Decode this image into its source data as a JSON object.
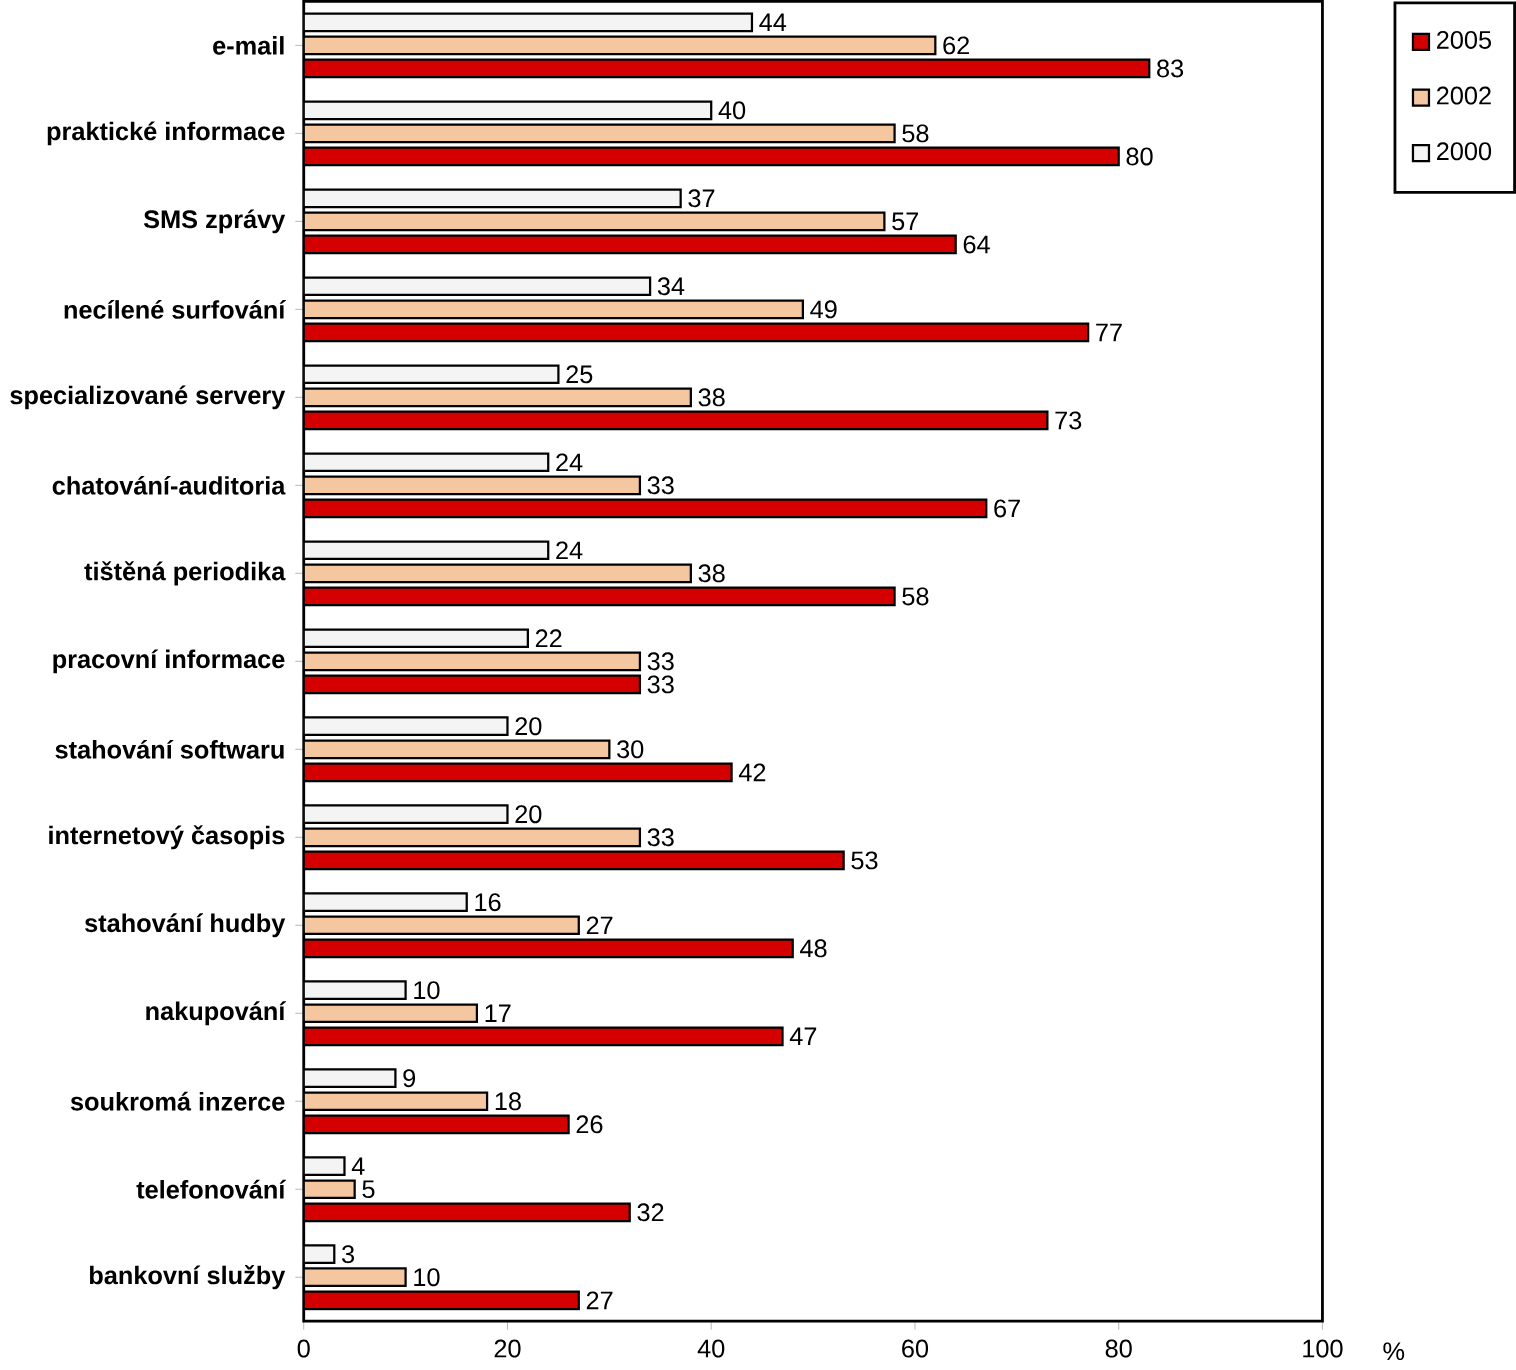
{
  "chart_data": {
    "type": "bar",
    "orientation": "horizontal",
    "xlabel": "%",
    "categories": [
      "e-mail",
      "praktické informace",
      "SMS zprávy",
      "necílené surfování",
      "specializované servery",
      "chatování-auditoria",
      "tištěná periodika",
      "pracovní informace",
      "stahování softwaru",
      "internetový časopis",
      "stahování hudby",
      "nakupování",
      "soukromá inzerce",
      "telefonování",
      "bankovní služby"
    ],
    "series": [
      {
        "name": "2005",
        "color": "#d40000",
        "values": [
          83,
          80,
          64,
          77,
          73,
          67,
          58,
          33,
          42,
          53,
          48,
          47,
          26,
          32,
          27
        ]
      },
      {
        "name": "2002",
        "color": "#f5c7a0",
        "values": [
          62,
          58,
          57,
          49,
          38,
          33,
          38,
          33,
          30,
          33,
          27,
          17,
          18,
          5,
          10
        ]
      },
      {
        "name": "2000",
        "color": "#f4f4f4",
        "values": [
          44,
          40,
          37,
          34,
          25,
          24,
          24,
          22,
          20,
          20,
          16,
          10,
          9,
          4,
          3
        ]
      }
    ],
    "xlim": [
      0,
      100
    ],
    "xticks": [
      0,
      20,
      40,
      60,
      80,
      100
    ],
    "data_labels": true,
    "legend": "top right",
    "grid": false
  }
}
